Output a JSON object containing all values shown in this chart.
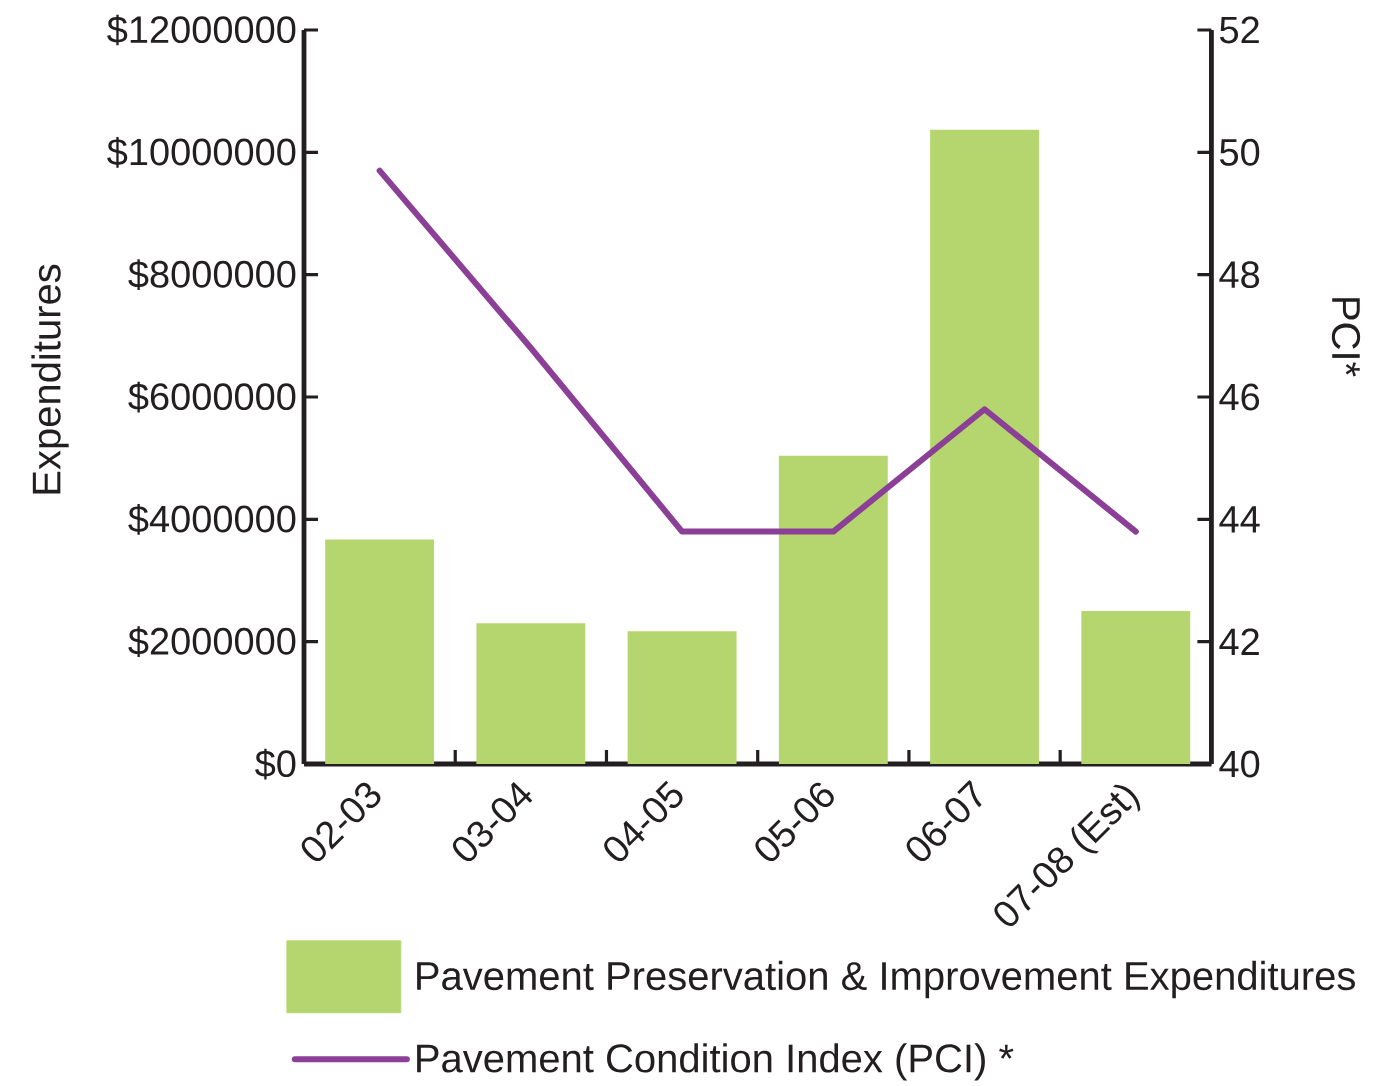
{
  "chart_data": {
    "type": "bar",
    "categories": [
      "02-03",
      "03-04",
      "04-05",
      "05-06",
      "06-07",
      "07-08 (Est)"
    ],
    "ylabel": "Expenditures",
    "y2label": "PCI*",
    "series": [
      {
        "name": "Pavement Preservation & Improvement Expenditures",
        "color": "#b5d56f",
        "values": [
          3670000,
          2300000,
          2170000,
          5040000,
          10370000,
          2500000
        ]
      },
      {
        "name": "Pavement Condition Index (PCI) *",
        "type": "line",
        "axis": "y2",
        "marker": "none",
        "color": "#8b3f96",
        "values": [
          49.7,
          46.8,
          43.8,
          43.8,
          45.8,
          43.8
        ]
      }
    ],
    "ylim": [
      0,
      12000000
    ],
    "yticks": [
      {
        "value": 0,
        "label": "$0"
      },
      {
        "value": 2000000,
        "label": "$2000000"
      },
      {
        "value": 4000000,
        "label": "$4000000"
      },
      {
        "value": 6000000,
        "label": "$6000000"
      },
      {
        "value": 8000000,
        "label": "$8000000"
      },
      {
        "value": 10000000,
        "label": "$10000000"
      },
      {
        "value": 12000000,
        "label": "$12000000"
      }
    ],
    "y2lim": [
      40,
      52
    ],
    "y2ticks": [
      40,
      42,
      44,
      46,
      48,
      50,
      52
    ],
    "legend": "bottom"
  }
}
